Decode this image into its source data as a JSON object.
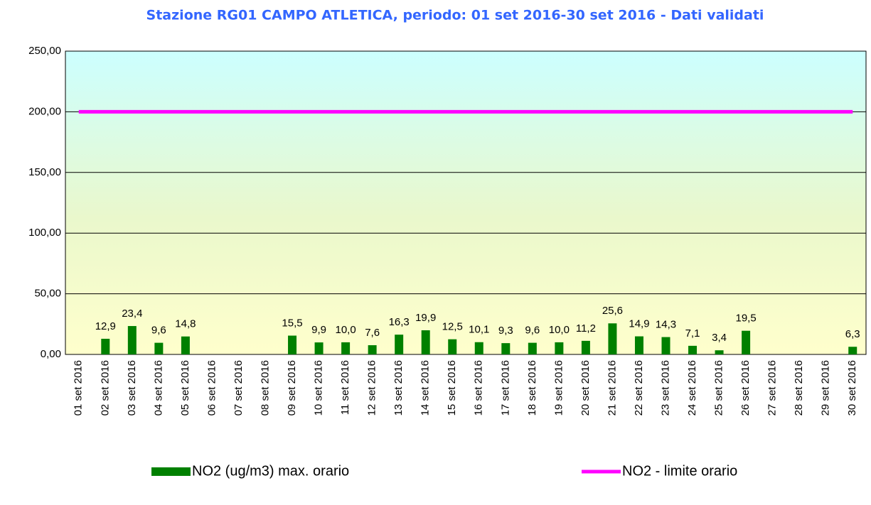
{
  "chart_data": {
    "type": "bar",
    "title": "Stazione RG01 CAMPO ATLETICA, periodo: 01 set 2016-30 set 2016 - Dati validati",
    "categories": [
      "01 set 2016",
      "02 set 2016",
      "03 set 2016",
      "04 set 2016",
      "05 set 2016",
      "06 set 2016",
      "07 set 2016",
      "08 set 2016",
      "09 set 2016",
      "10 set 2016",
      "11 set 2016",
      "12 set 2016",
      "13 set 2016",
      "14 set 2016",
      "15 set 2016",
      "16 set 2016",
      "17 set 2016",
      "18 set 2016",
      "19 set 2016",
      "20 set 2016",
      "21 set 2016",
      "22 set 2016",
      "23 set 2016",
      "24 set 2016",
      "25 set 2016",
      "26 set 2016",
      "27 set 2016",
      "28 set 2016",
      "29 set 2016",
      "30 set 2016"
    ],
    "series": [
      {
        "name": "NO2 (ug/m3) max. orario",
        "type": "bar",
        "color": "#008000",
        "values": [
          null,
          12.9,
          23.4,
          9.6,
          14.8,
          null,
          null,
          null,
          15.5,
          9.9,
          10.0,
          7.6,
          16.3,
          19.9,
          12.5,
          10.1,
          9.3,
          9.6,
          10.0,
          11.2,
          25.6,
          14.9,
          14.3,
          7.1,
          3.4,
          19.5,
          null,
          null,
          null,
          6.3
        ],
        "value_labels": [
          null,
          "12,9",
          "23,4",
          "9,6",
          "14,8",
          null,
          null,
          null,
          "15,5",
          "9,9",
          "10,0",
          "7,6",
          "16,3",
          "19,9",
          "12,5",
          "10,1",
          "9,3",
          "9,6",
          "10,0",
          "11,2",
          "25,6",
          "14,9",
          "14,3",
          "7,1",
          "3,4",
          "19,5",
          null,
          null,
          null,
          "6,3"
        ]
      },
      {
        "name": "NO2 - limite orario",
        "type": "line",
        "color": "#ff00ff",
        "values": [
          200,
          200,
          200,
          200,
          200,
          200,
          200,
          200,
          200,
          200,
          200,
          200,
          200,
          200,
          200,
          200,
          200,
          200,
          200,
          200,
          200,
          200,
          200,
          200,
          200,
          200,
          200,
          200,
          200,
          200
        ]
      }
    ],
    "ylim": [
      0,
      250
    ],
    "yticks": [
      {
        "value": 0,
        "label": "0,00"
      },
      {
        "value": 50,
        "label": "50,00"
      },
      {
        "value": 100,
        "label": "100,00"
      },
      {
        "value": 150,
        "label": "150,00"
      },
      {
        "value": 200,
        "label": "200,00"
      },
      {
        "value": 250,
        "label": "250,00"
      }
    ],
    "grid": true,
    "legend": "bottom"
  }
}
